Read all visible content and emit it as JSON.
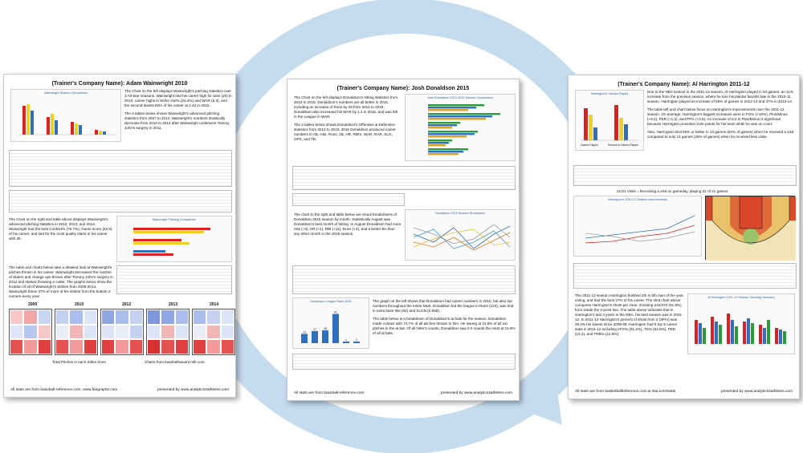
{
  "pages": {
    "left": {
      "title": "(Trainer's Company Name): Adam Wainwright 2010",
      "chart1_title": "Wainwright Season Comparison",
      "para1": "The Chart on the left displays Wainwright's pitching statistics over 3 All-Star seasons. Wainwright tied his career high for wins (20) in 2010, career highs in Strike Out% (23.4%) and WAR (6.3), and the second lowest ERA of his career at 2.42 in 2010.",
      "para2": "The 2 tables below shows Wainwright's advanced pitching statistics from 2007 to 2014. Wainwright's numbers drastically decrease from 2010 to 2012 after Wainwright underwent Tommy John's surgery in 2011.",
      "para3": "The Chart on the right and table above displays Wainwright's advanced pitching statistics in 2010, 2013, and 2014. Wainwright had the best Contact% (76.7%), Game score (62.5) of his career, and tied for the most quality starts in his career with 25.",
      "chart2_title": "Wainwright Pitching Comparison",
      "para4": "The table and charts below take a detailed look at Wainwright's pitches thrown in his career. Wainwright decreased the number of sliders and change ups thrown after Tommy John's surgery in 2012 and started throwing a cutter. The graphs below show the location of all of Wainwright's Strikes from 2009-2014. Wainwright threw 37% of more of his strikes from the bottom 2 corners every year.",
      "zone_years": [
        "2009",
        "2010",
        "2012",
        "2013",
        "2014"
      ],
      "zone_caption_left": "Total Pitches in each Strike Zone",
      "zone_caption_right": "Charts from baseballsavant.mlb.com",
      "footer_left": "All stats are from baseball-reference.com, www.fangraphs.com",
      "footer_right": "presented by www.analytics4athletes.com"
    },
    "center": {
      "title": "(Trainer's Company Name): Josh Donaldson 2015",
      "chart1_title": "Josh Donaldson 2013-2015 Season Comparison",
      "para1": "The Chart on the left displays Donaldson's hitting statistics from 2013 to 2015. Donaldson's numbers are all better in 2015, including an increase of Runs by 29 from 2014 to 2015. Donaldson also increased his WAR by 1.1 in 2015, and was 5th in the League in WAR.",
      "para2": "The 2 tables below shows Donaldson's Offensive & Defensive statistics from 2013 to 2015. 2015 Donaldson produced career numbers in AB, Hits, Runs, 2B, HR, RBI's, WAR, RAR, SLG, OPS, and TB.",
      "para3": "The chart to the right and table below are visual breakdowns of Donaldson 2015 season by month. Statistically August was Donaldson's best month of hitting. In August Donaldson had more Hits (+3), HR (+1), RBI (+11), Runs (+4), and a better BA than any other month in the 2015 season.",
      "chart2_title": "Donaldson 2015 Season Breakdown",
      "chart3_title": "Donaldson League Rank 2015",
      "chart3_bars": [
        13,
        17,
        18,
        41,
        1,
        2
      ],
      "para4": "The graph on the left shows that Donaldson had career numbers in 2015, but also top numbers throughout the entire MLB. Donaldson led the league in Runs (122), was 2nd in extra base hits (84) and SLGN (0.568).",
      "para5": "The table below is a breakdown of Donaldson's at bats for the season. Donaldson made contact with 74.7% of all pitches thrown to him. He swung at 31.6% of all 1st pitches in the at bat. Of all hitter's counts, Donaldson saw 2-0 counts the most at 15.9% of all at bats.",
      "footer_left": "All stats are from baseball-reference.com",
      "footer_right": "presented by www.analytics4athletes.com"
    },
    "right": {
      "title": "(Trainer's Company Name): Al Harrington 2011-12",
      "chart1_title": "Harrington's Games Played",
      "chart1_labels": [
        "Games Played",
        "Percent of Games Played"
      ],
      "para1": "Due to the NBA lockout in the 2011-12 season, Al Harrington played in 64 games, an 11% increase from the previous season, where he tore his plantar fasciitis late in the 2010-11 season. Harrington played an increase of 66% of games in 2012-13 and 37% in 2013-14.",
      "para2": "The table left and chart below focus on Harrington's improvements over the 2011-12 season. On average, Harrington's biggest increases were in FG% (+10%), Plus/Minus (+6.2), PER (+1.2), and PPG (+0.8). An increase of 6.2 in Plus/Minus is significant because Harrington provided more points for his team while he was on court.",
      "para3": "Also, Harrington shot 50% or better in 13 games (62% of games) when he received a visit compared to only 14 games (28% of games) when he received less visits.",
      "visits_caption": "21/21 Visits = Receiving a visit on gameday, playing 21 of 21 games",
      "chart2_title": "Harrington's 2011-12 Season Improvements",
      "para4": "The 2011-12 season Harrington finished 4th in 6th man of the year voting, and had the best 27% of his career. The shot chart above compares Harrington's shots per zone, shooting 244/470 (51.9%) from inside the 3-point line. The table above indicates that in Harrington's last 4 years in the NBA, his best season was in 2011-12. In 2011-12 Harrington's percent of shots from 3 (3PAr) was 39.2% his lowest since 2008-09. Harrington had 5 top 5 career stats in 2011-12 including eFG% (51.2%), TS% (54.5%), PER (15.3), and TRB% (12.9%).",
      "chart3_title": "Al Harrington 2011-12 Season Shooting Numbers",
      "footer_left": "All stats are from basketballreference.com & nba.com/stats",
      "footer_right": "presented by www.analytics4athletes.com"
    }
  },
  "colors": {
    "ring": "#c5dbee",
    "blue": "#2e6fc0",
    "red": "#e02020",
    "yellow": "#f0d020",
    "green": "#2a9a3a"
  }
}
